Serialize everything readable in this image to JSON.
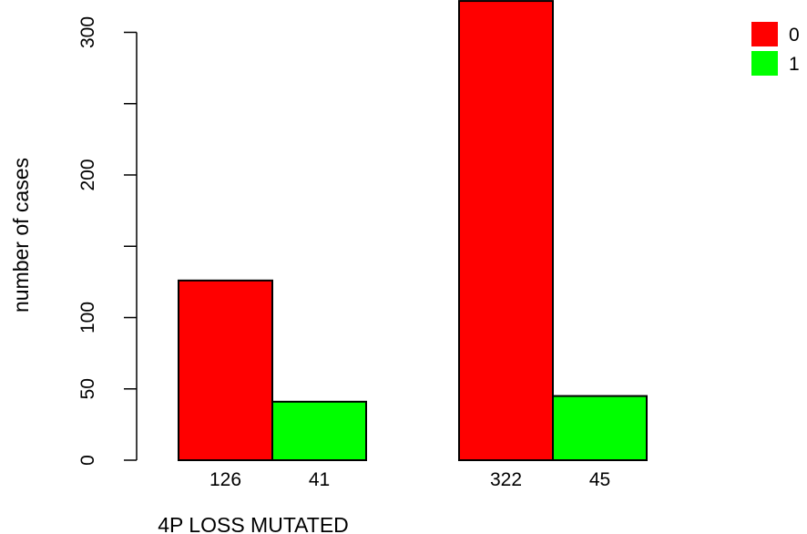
{
  "chart_data": {
    "type": "bar",
    "layout": "grouped",
    "xlabel": "4P LOSS MUTATED",
    "ylabel": "number of cases",
    "ylim": [
      0,
      320
    ],
    "yticks": [
      0,
      50,
      100,
      200,
      300
    ],
    "groups": [
      {
        "values": [
          126,
          41
        ],
        "labels": [
          "126",
          "41"
        ]
      },
      {
        "values": [
          322,
          45
        ],
        "labels": [
          "322",
          "45"
        ]
      }
    ],
    "series": [
      {
        "name": "0",
        "color": "#ff0000"
      },
      {
        "name": "1",
        "color": "#00ff00"
      }
    ],
    "legend_position": "top-right",
    "grid": false
  }
}
